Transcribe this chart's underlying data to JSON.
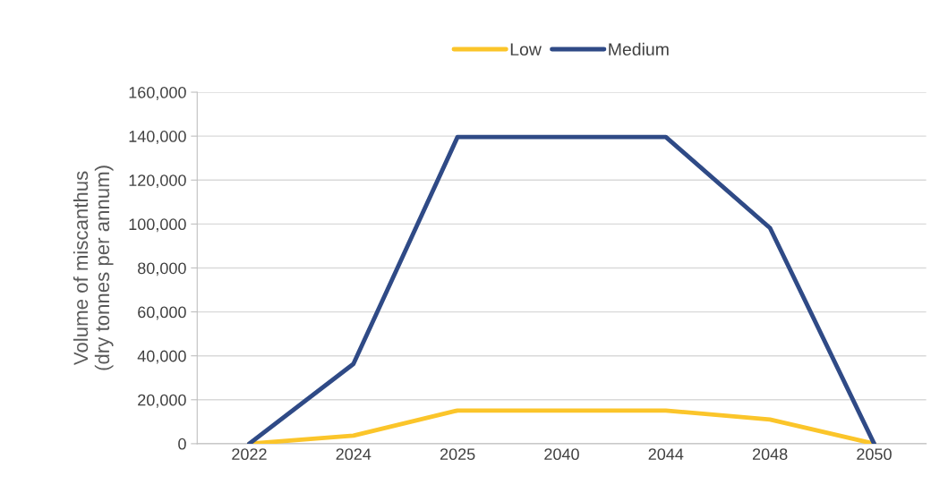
{
  "chart_data": {
    "type": "line",
    "ylabel": "Volume of miscanthus\n(dry tonnes per annum)",
    "categories": [
      "2022",
      "2024",
      "2025",
      "2040",
      "2044",
      "2048",
      "2050"
    ],
    "series": [
      {
        "name": "Low",
        "color": "#fbc52a",
        "values": [
          0,
          3700,
          15100,
          15100,
          15100,
          11000,
          0
        ]
      },
      {
        "name": "Medium",
        "color": "#2f4a86",
        "values": [
          0,
          36300,
          139600,
          139600,
          139600,
          98200,
          0
        ]
      }
    ],
    "ylim": [
      0,
      160000
    ],
    "yticks": [
      {
        "value": 0,
        "label": "0"
      },
      {
        "value": 20000,
        "label": "20,000"
      },
      {
        "value": 40000,
        "label": "40,000"
      },
      {
        "value": 60000,
        "label": "60,000"
      },
      {
        "value": 80000,
        "label": "80,000"
      },
      {
        "value": 100000,
        "label": "100,000"
      },
      {
        "value": 120000,
        "label": "120,000"
      },
      {
        "value": 140000,
        "label": "140,000"
      },
      {
        "value": 160000,
        "label": "160,000"
      }
    ],
    "grid": "y",
    "legend": "top",
    "marker": "none",
    "line_style": "solid"
  }
}
